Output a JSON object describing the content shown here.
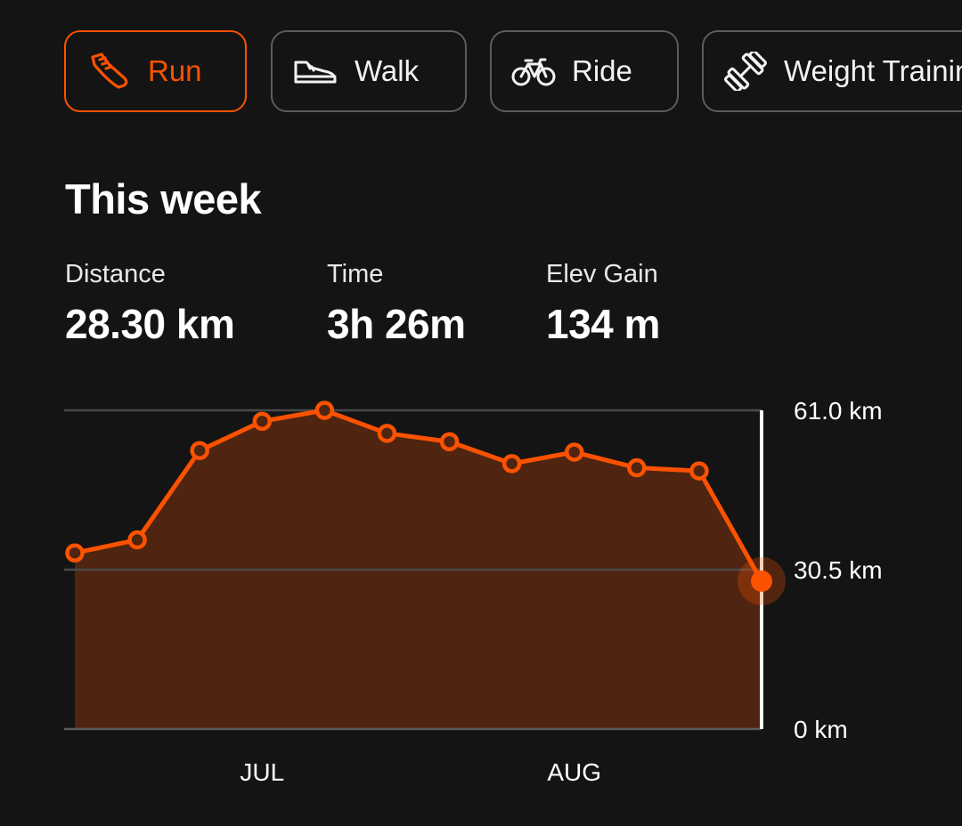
{
  "tabs": [
    {
      "label": "Run",
      "icon": "running-shoe-icon",
      "active": true
    },
    {
      "label": "Walk",
      "icon": "walking-shoe-icon",
      "active": false
    },
    {
      "label": "Ride",
      "icon": "bicycle-icon",
      "active": false
    },
    {
      "label": "Weight Training",
      "icon": "dumbbell-icon",
      "active": false
    }
  ],
  "summary": {
    "title": "This week",
    "stats": [
      {
        "label": "Distance",
        "value": "28.30 km"
      },
      {
        "label": "Time",
        "value": "3h 26m"
      },
      {
        "label": "Elev Gain",
        "value": "134 m"
      }
    ]
  },
  "colors": {
    "accent": "#fc5200",
    "background": "#141414",
    "area_fill": "#4f2411"
  },
  "chart_data": {
    "type": "area",
    "x": [
      "",
      "",
      "",
      "JUL",
      "",
      "",
      "",
      "",
      "AUG",
      "",
      "",
      ""
    ],
    "x_tick_labels": [
      "JUL",
      "AUG"
    ],
    "series": [
      {
        "values": [
          33.7,
          36.2,
          53.3,
          58.9,
          61.0,
          56.6,
          55.0,
          50.8,
          53.0,
          50.0,
          49.4,
          28.3
        ]
      }
    ],
    "y_ticks": [
      "61.0 km",
      "30.5 km",
      "0 km"
    ],
    "y_tick_values": [
      61.0,
      30.5,
      0
    ],
    "ylim": [
      0,
      61.0
    ],
    "highlighted_point": {
      "index": 11,
      "value": 28.3
    },
    "grid": true,
    "y_axis_position": "right"
  }
}
